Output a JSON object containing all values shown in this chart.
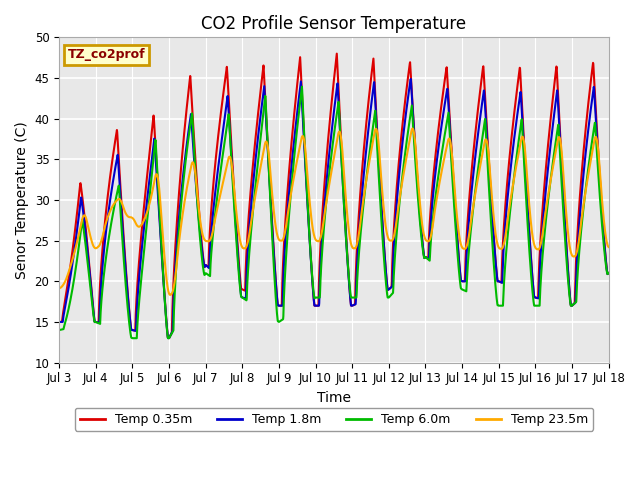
{
  "title": "CO2 Profile Sensor Temperature",
  "xlabel": "Time",
  "ylabel": "Senor Temperature (C)",
  "ylim": [
    10,
    50
  ],
  "background_color": "#e8e8e8",
  "grid_color": "white",
  "legend_label": "TZ_co2prof",
  "legend_bg": "#ffffcc",
  "legend_border": "#cc9900",
  "series": [
    {
      "label": "Temp 0.35m",
      "color": "#dd0000",
      "lw": 1.5
    },
    {
      "label": "Temp 1.8m",
      "color": "#0000cc",
      "lw": 1.5
    },
    {
      "label": "Temp 6.0m",
      "color": "#00bb00",
      "lw": 1.5
    },
    {
      "label": "Temp 23.5m",
      "color": "#ffaa00",
      "lw": 1.5
    }
  ],
  "xtick_labels": [
    "Jul 3",
    "Jul 4",
    "Jul 5",
    "Jul 6",
    "Jul 7",
    "Jul 8",
    "Jul 9",
    "Jul 10",
    "Jul 11",
    "Jul 12",
    "Jul 13",
    "Jul 14",
    "Jul 15",
    "Jul 16",
    "Jul 17",
    "Jul 18"
  ],
  "title_fontsize": 12,
  "axis_label_fontsize": 10,
  "tick_fontsize": 8.5
}
